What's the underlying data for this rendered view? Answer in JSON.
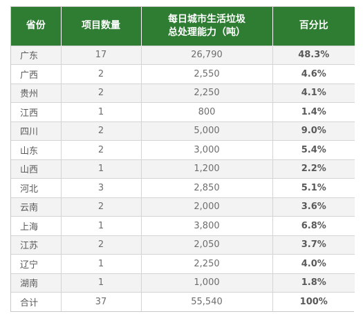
{
  "table": {
    "headers": {
      "province": "省份",
      "projects": "项目数量",
      "capacity_line1": "每日城市生活垃圾",
      "capacity_line2": "总处理能力（吨）",
      "percent": "百分比"
    },
    "rows": [
      {
        "province": "广东",
        "projects": "17",
        "capacity": "26,790",
        "percent": "48.3%"
      },
      {
        "province": "广西",
        "projects": "2",
        "capacity": "2,550",
        "percent": "4.6%"
      },
      {
        "province": "贵州",
        "projects": "2",
        "capacity": "2,250",
        "percent": "4.1%"
      },
      {
        "province": "江西",
        "projects": "1",
        "capacity": "800",
        "percent": "1.4%"
      },
      {
        "province": "四川",
        "projects": "2",
        "capacity": "5,000",
        "percent": "9.0%"
      },
      {
        "province": "山东",
        "projects": "2",
        "capacity": "3,000",
        "percent": "5.4%"
      },
      {
        "province": "山西",
        "projects": "1",
        "capacity": "1,200",
        "percent": "2.2%"
      },
      {
        "province": "河北",
        "projects": "3",
        "capacity": "2,850",
        "percent": "5.1%"
      },
      {
        "province": "云南",
        "projects": "2",
        "capacity": "2,000",
        "percent": "3.6%"
      },
      {
        "province": "上海",
        "projects": "1",
        "capacity": "3,800",
        "percent": "6.8%"
      },
      {
        "province": "江苏",
        "projects": "2",
        "capacity": "2,050",
        "percent": "3.7%"
      },
      {
        "province": "辽宁",
        "projects": "1",
        "capacity": "2,250",
        "percent": "4.0%"
      },
      {
        "province": "湖南",
        "projects": "1",
        "capacity": "1,000",
        "percent": "1.8%"
      },
      {
        "province": "合计",
        "projects": "37",
        "capacity": "55,540",
        "percent": "100%"
      }
    ]
  },
  "colors": {
    "header_bg": "#2e7d32",
    "header_text": "#ffffff",
    "row_alt_bg": "#f3f3f3"
  }
}
